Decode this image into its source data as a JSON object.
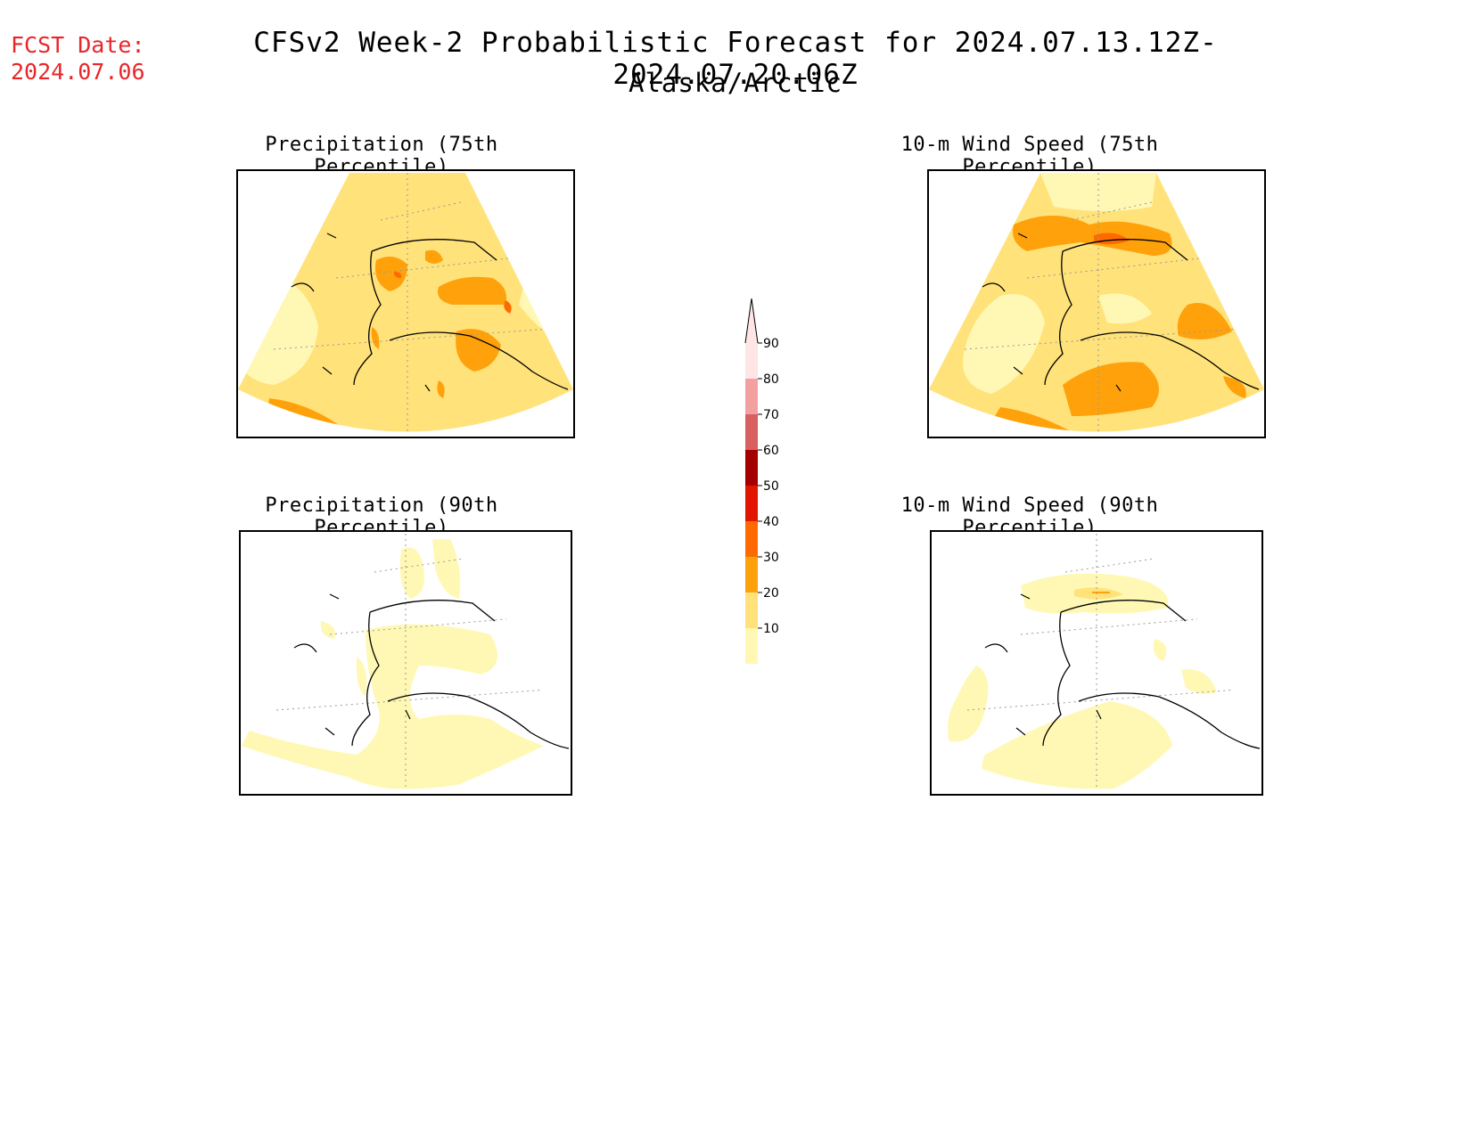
{
  "fcst": {
    "label": "FCST Date:",
    "date": "2024.07.06"
  },
  "title": "CFSv2 Week-2 Probabilistic Forecast for 2024.07.13.12Z-2024.07.20.06Z",
  "subtitle": "Alaska/Arctic",
  "panels": [
    {
      "title": "Precipitation (75th Percentile)"
    },
    {
      "title": "10-m Wind Speed (75th Percentile)"
    },
    {
      "title": "Precipitation (90th Percentile)"
    },
    {
      "title": "10-m Wind Speed (90th Percentile)"
    }
  ],
  "legend": {
    "levels": [
      "10",
      "20",
      "30",
      "40",
      "50",
      "60",
      "70",
      "80",
      "90"
    ],
    "colors": [
      "#fff8b4",
      "#ffe27a",
      "#ffa10a",
      "#ff6a00",
      "#e21500",
      "#a50000",
      "#d86060",
      "#f3a0a0",
      "#ffe5e5"
    ]
  },
  "map_colors": {
    "bin_10_20": "#fff8b4",
    "bin_20_30": "#ffe27a",
    "bin_30_40": "#ffa10a",
    "bin_40_50": "#ff6a00",
    "coast": "#000000",
    "grid": "#999999"
  }
}
